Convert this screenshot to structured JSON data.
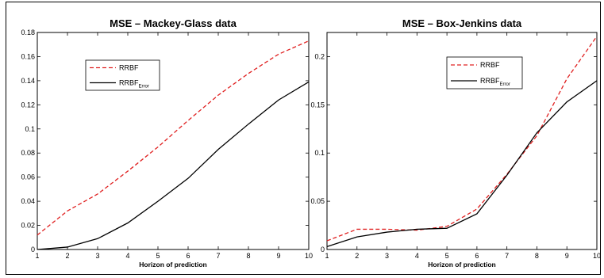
{
  "chart_data": [
    {
      "type": "line",
      "title": "MSE – Mackey-Glass data",
      "xlabel": "Horizon of prediction",
      "ylabel": "",
      "xlim": [
        1,
        10
      ],
      "ylim": [
        0,
        0.18
      ],
      "x_ticks": [
        "1",
        "2",
        "3",
        "4",
        "5",
        "6",
        "7",
        "8",
        "9",
        "10"
      ],
      "y_ticks": [
        "0",
        "0.02",
        "0.04",
        "0.06",
        "0.08",
        "0.1",
        "0.12",
        "0.14",
        "0.16",
        "0.18"
      ],
      "grid": false,
      "legend_placement": "upper-left",
      "x": [
        1,
        2,
        3,
        4,
        5,
        6,
        7,
        8,
        9,
        10
      ],
      "series": [
        {
          "name": "RRBF",
          "color": "#e02020",
          "dash": "dashed",
          "values": [
            0.012,
            0.032,
            0.046,
            0.065,
            0.085,
            0.107,
            0.128,
            0.146,
            0.162,
            0.173
          ]
        },
        {
          "name": "RRBF",
          "name_subscript": "Error",
          "color": "#000000",
          "dash": "solid",
          "values": [
            0.0,
            0.002,
            0.009,
            0.022,
            0.04,
            0.059,
            0.083,
            0.104,
            0.124,
            0.139
          ]
        }
      ]
    },
    {
      "type": "line",
      "title": "MSE – Box-Jenkins data",
      "xlabel": "Horizon of prediction",
      "ylabel": "",
      "xlim": [
        1,
        10
      ],
      "ylim": [
        0,
        0.225
      ],
      "x_ticks": [
        "1",
        "2",
        "3",
        "4",
        "5",
        "6",
        "7",
        "8",
        "9",
        "10"
      ],
      "y_ticks": [
        "0",
        "0.05",
        "0.1",
        "0.15",
        "0.2"
      ],
      "grid": false,
      "legend_placement": "upper-center",
      "x": [
        1,
        2,
        3,
        4,
        5,
        6,
        7,
        8,
        9,
        10
      ],
      "series": [
        {
          "name": "RRBF",
          "color": "#e02020",
          "dash": "dashed",
          "values": [
            0.009,
            0.021,
            0.021,
            0.02,
            0.024,
            0.042,
            0.078,
            0.118,
            0.177,
            0.221
          ]
        },
        {
          "name": "RRBF",
          "name_subscript": "Error",
          "color": "#000000",
          "dash": "solid",
          "values": [
            0.003,
            0.013,
            0.018,
            0.021,
            0.022,
            0.037,
            0.077,
            0.121,
            0.153,
            0.175
          ]
        }
      ]
    }
  ]
}
